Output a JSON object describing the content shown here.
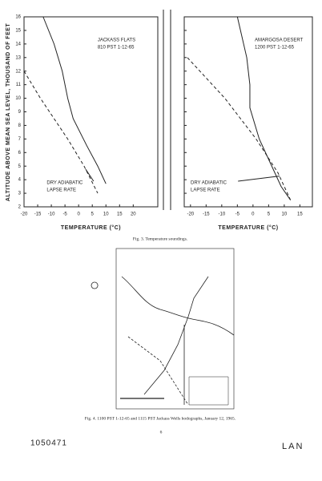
{
  "fig3": {
    "y_axis_label": "ALTITUDE ABOVE MEAN SEA LEVEL, THOUSAND OF FEET",
    "ylim": [
      2,
      16
    ],
    "yticks": [
      2,
      3,
      4,
      5,
      6,
      7,
      8,
      9,
      10,
      11,
      12,
      13,
      14,
      15,
      16
    ],
    "caption": "Fig. 3. Temperature soundings.",
    "panels": [
      {
        "title_lines": [
          "JACKASS FLATS",
          "810 PST 1-12-65"
        ],
        "annotation": [
          "DRY ADIABATIC",
          "LAPSE RATE"
        ],
        "x_label": "TEMPERATURE (°C)",
        "xlim": [
          -20,
          29
        ],
        "xticks": [
          -20,
          -15,
          -10,
          -5,
          0,
          5,
          10,
          15,
          20
        ],
        "sounding": {
          "x": [
            -13,
            -9,
            -6,
            -4,
            -2,
            3,
            7,
            10
          ],
          "y": [
            16,
            14,
            12,
            10,
            8.5,
            6.5,
            5,
            3.7
          ]
        },
        "dry_adiabat": {
          "x": [
            -20,
            -14,
            -4,
            2,
            7
          ],
          "y": [
            12,
            10,
            7,
            5,
            3
          ]
        }
      },
      {
        "title_lines": [
          "AMARGOSA DESERT",
          "1200 PST 1-12-65"
        ],
        "annotation": [
          "DRY ADIABATIC",
          "LAPSE RATE"
        ],
        "x_label": "TEMPERATURE (°C)",
        "xlim": [
          -22,
          19
        ],
        "xticks": [
          -20,
          -15,
          -10,
          -5,
          0,
          5,
          10,
          15
        ],
        "sounding": {
          "x": [
            -5,
            -2,
            -1,
            -1,
            2,
            5,
            9,
            12
          ],
          "y": [
            16,
            13,
            11,
            9.3,
            7,
            5.5,
            3.5,
            2.5
          ]
        },
        "dry_adiabat": {
          "x": [
            -21,
            -9,
            1,
            8,
            12
          ],
          "y": [
            13,
            10,
            7,
            4.5,
            2.5
          ]
        }
      }
    ]
  },
  "fig4": {
    "caption": "Fig. 4. 1100 PST 1-12-65 and 1115 PST Jackass Wells hodographs, January 12, 1965."
  },
  "page_number": "6",
  "footer_left": "1050471",
  "footer_right": "LAN"
}
